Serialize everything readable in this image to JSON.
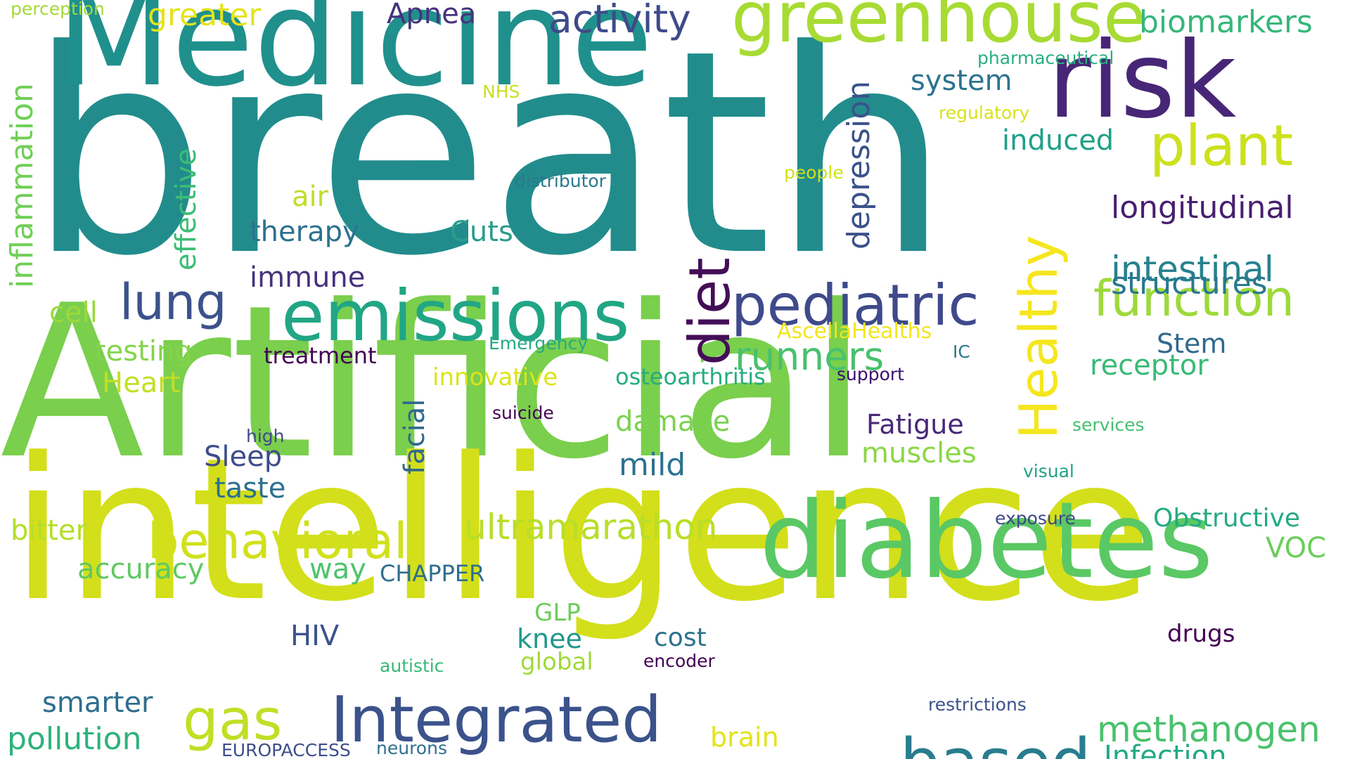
{
  "words": [
    {
      "text": "breath",
      "color": "#228c8c"
    },
    {
      "text": "Artificial",
      "color": "#7acf4c"
    },
    {
      "text": "intelligence",
      "color": "#d3df1a"
    },
    {
      "text": "Medicine",
      "color": "#20908d"
    },
    {
      "text": "greenhouse",
      "color": "#a8db34"
    },
    {
      "text": "risk",
      "color": "#482677"
    },
    {
      "text": "diabetes",
      "color": "#5ac864"
    },
    {
      "text": "emissions",
      "color": "#21a685"
    },
    {
      "text": "Integrated",
      "color": "#3b528b"
    },
    {
      "text": "pediatric",
      "color": "#3f4a8a"
    },
    {
      "text": "diet",
      "color": "#440e57"
    },
    {
      "text": "Healthy",
      "color": "#f5e61f"
    },
    {
      "text": "based",
      "color": "#287d8e"
    },
    {
      "text": "behavioral",
      "color": "#d0e11c"
    },
    {
      "text": "lung",
      "color": "#3b528b"
    },
    {
      "text": "gas",
      "color": "#c0df25"
    },
    {
      "text": "plant",
      "color": "#cde11d"
    },
    {
      "text": "function",
      "color": "#9dd93b"
    },
    {
      "text": "runners",
      "color": "#48c16e"
    },
    {
      "text": "activity",
      "color": "#3e4a89"
    },
    {
      "text": "ultramarathon",
      "color": "#b8de29"
    },
    {
      "text": "intestinal",
      "color": "#26828e"
    },
    {
      "text": "longitudinal",
      "color": "#481f70"
    },
    {
      "text": "structures",
      "color": "#2a788e"
    },
    {
      "text": "methanogen",
      "color": "#4ac16d"
    },
    {
      "text": "biomarkers",
      "color": "#35b779"
    },
    {
      "text": "pollution",
      "color": "#2db27d"
    },
    {
      "text": "depression",
      "color": "#3b528b"
    },
    {
      "text": "inflammation",
      "color": "#70cf57"
    },
    {
      "text": "greater",
      "color": "#e5e419"
    },
    {
      "text": "Apnea",
      "color": "#46327e"
    },
    {
      "text": "induced",
      "color": "#1fa088"
    },
    {
      "text": "system",
      "color": "#2c728e"
    },
    {
      "text": "therapy",
      "color": "#2c728e"
    },
    {
      "text": "effective",
      "color": "#3dbc74"
    },
    {
      "text": "air",
      "color": "#bddf26"
    },
    {
      "text": "Cuts",
      "color": "#2a9d8c"
    },
    {
      "text": "immune",
      "color": "#46327e"
    },
    {
      "text": "testing",
      "color": "#84d44b"
    },
    {
      "text": "Heart",
      "color": "#c2df23"
    },
    {
      "text": "cell",
      "color": "#9bd93c"
    },
    {
      "text": "treatment",
      "color": "#440154"
    },
    {
      "text": "facial",
      "color": "#31688e"
    },
    {
      "text": "innovative",
      "color": "#dde318"
    },
    {
      "text": "osteoarthritis",
      "color": "#25ac82"
    },
    {
      "text": "receptor",
      "color": "#3aba76"
    },
    {
      "text": "Stem",
      "color": "#31688e"
    },
    {
      "text": "Fatigue",
      "color": "#482878"
    },
    {
      "text": "damage",
      "color": "#7ad151"
    },
    {
      "text": "muscles",
      "color": "#8bd646"
    },
    {
      "text": "mild",
      "color": "#2c728e"
    },
    {
      "text": "Sleep",
      "color": "#3e4c8a"
    },
    {
      "text": "taste",
      "color": "#2d708e"
    },
    {
      "text": "bitter",
      "color": "#b5de2b"
    },
    {
      "text": "accuracy",
      "color": "#5ec962"
    },
    {
      "text": "way",
      "color": "#4ec36b"
    },
    {
      "text": "CHAPPER",
      "color": "#2e6f8e"
    },
    {
      "text": "Obstructive",
      "color": "#24aa83"
    },
    {
      "text": "VOC",
      "color": "#6ccd5a"
    },
    {
      "text": "HIV",
      "color": "#3b528b"
    },
    {
      "text": "GLP",
      "color": "#6ccd5a"
    },
    {
      "text": "knee",
      "color": "#1f988b"
    },
    {
      "text": "cost",
      "color": "#2c728e"
    },
    {
      "text": "drugs",
      "color": "#440154"
    },
    {
      "text": "global",
      "color": "#a0da39"
    },
    {
      "text": "autistic",
      "color": "#38b977"
    },
    {
      "text": "encoder",
      "color": "#440154"
    },
    {
      "text": "smarter",
      "color": "#2e6e8e"
    },
    {
      "text": "brain",
      "color": "#e2e418"
    },
    {
      "text": "Infection",
      "color": "#23a983"
    },
    {
      "text": "restrictions",
      "color": "#3b528b"
    },
    {
      "text": "EUROPACCESS",
      "color": "#3d4e8a"
    },
    {
      "text": "neurons",
      "color": "#2e6f8e"
    },
    {
      "text": "perception",
      "color": "#a2da37"
    },
    {
      "text": "NHS",
      "color": "#c8e020"
    },
    {
      "text": "pharmaceutical",
      "color": "#29af7f"
    },
    {
      "text": "regulatory",
      "color": "#d8e219"
    },
    {
      "text": "people",
      "color": "#d0e11c"
    },
    {
      "text": "distributor",
      "color": "#2a788e"
    },
    {
      "text": "AscellaHealths",
      "color": "#f1e51d"
    },
    {
      "text": "Emergency",
      "color": "#24aa83"
    },
    {
      "text": "IC",
      "color": "#2a788e"
    },
    {
      "text": "support",
      "color": "#3b0f70"
    },
    {
      "text": "suicide",
      "color": "#440154"
    },
    {
      "text": "high",
      "color": "#3e4a89"
    },
    {
      "text": "services",
      "color": "#44bf70"
    },
    {
      "text": "visual",
      "color": "#20a486"
    },
    {
      "text": "exposure",
      "color": "#3f4788"
    }
  ]
}
